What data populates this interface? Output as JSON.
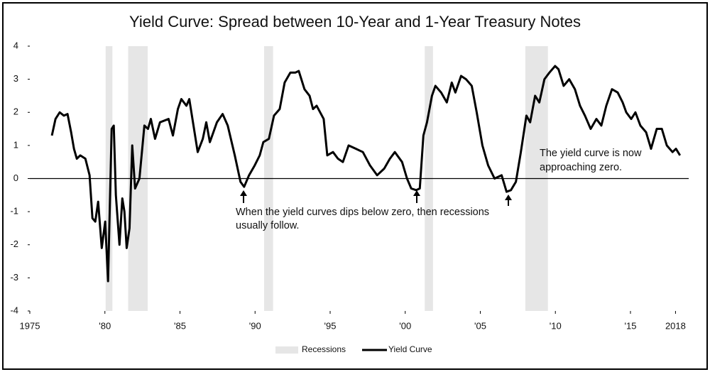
{
  "chart_data": {
    "type": "line",
    "title": "Yield Curve: Spread between 10-Year and 1-Year Treasury Notes",
    "xlim": [
      1975,
      2018.5
    ],
    "xticks": [
      1975,
      {
        "value": 1980,
        "label": "'80"
      },
      {
        "value": 1985,
        "label": "'85"
      },
      {
        "value": 1990,
        "label": "'90"
      },
      {
        "value": 1995,
        "label": "'95"
      },
      {
        "value": 2000,
        "label": "'00"
      },
      {
        "value": 2005,
        "label": "'05"
      },
      {
        "value": 2010,
        "label": "'10"
      },
      {
        "value": 2015,
        "label": "'15"
      },
      2018
    ],
    "ylim": [
      -4,
      4
    ],
    "yticks": [
      4,
      3,
      2,
      1,
      0,
      -1,
      -2,
      -3,
      -4
    ],
    "recessions": {
      "name": "Recessions",
      "color": "#e6e6e6",
      "periods": [
        [
          1980.05,
          1980.5
        ],
        [
          1981.55,
          1982.85
        ],
        [
          1990.6,
          1991.2
        ],
        [
          2001.3,
          2001.85
        ],
        [
          2008.0,
          2009.5
        ]
      ]
    },
    "x": [
      1976.47,
      1976.71,
      1976.99,
      1977.27,
      1977.51,
      1977.75,
      1977.94,
      1978.13,
      1978.36,
      1978.7,
      1978.98,
      1979.17,
      1979.36,
      1979.55,
      1979.79,
      1980.02,
      1980.21,
      1980.45,
      1980.59,
      1980.73,
      1980.97,
      1981.16,
      1981.3,
      1981.45,
      1981.64,
      1981.82,
      1982.01,
      1982.3,
      1982.63,
      1982.87,
      1983.06,
      1983.34,
      1983.67,
      1984.24,
      1984.53,
      1984.86,
      1985.09,
      1985.43,
      1985.62,
      1985.9,
      1986.18,
      1986.52,
      1986.75,
      1986.99,
      1987.46,
      1987.84,
      1988.18,
      1988.65,
      1989.03,
      1989.27,
      1989.6,
      1989.98,
      1990.31,
      1990.55,
      1990.92,
      1991.26,
      1991.64,
      1991.97,
      1992.35,
      1992.68,
      1992.91,
      1993.29,
      1993.63,
      1993.86,
      1994.1,
      1994.57,
      1994.81,
      1995.19,
      1995.52,
      1995.85,
      1996.23,
      1996.71,
      1997.18,
      1997.65,
      1998.13,
      1998.6,
      1998.98,
      1999.31,
      1999.79,
      2000.12,
      2000.4,
      2000.73,
      2000.97,
      2001.21,
      2001.45,
      2001.78,
      2002.01,
      2002.39,
      2002.77,
      2003.1,
      2003.34,
      2003.72,
      2004.05,
      2004.43,
      2004.76,
      2005.14,
      2005.52,
      2005.95,
      2006.42,
      2006.75,
      2007.04,
      2007.37,
      2007.7,
      2008.07,
      2008.32,
      2008.65,
      2008.93,
      2009.27,
      2009.6,
      2009.98,
      2010.21,
      2010.55,
      2010.92,
      2011.3,
      2011.64,
      2011.97,
      2012.35,
      2012.73,
      2013.06,
      2013.39,
      2013.77,
      2014.15,
      2014.48,
      2014.72,
      2015.05,
      2015.33,
      2015.66,
      2016.04,
      2016.37,
      2016.75,
      2017.09,
      2017.42,
      2017.8,
      2018.03,
      2018.3
    ],
    "series": [
      {
        "name": "Yield Curve",
        "color": "#000000",
        "values": [
          1.3,
          1.8,
          2.0,
          1.9,
          1.95,
          1.4,
          0.9,
          0.6,
          0.7,
          0.6,
          0.1,
          -1.2,
          -1.3,
          -0.7,
          -2.1,
          -1.3,
          -3.1,
          1.5,
          1.6,
          -0.5,
          -2.0,
          -0.6,
          -1.0,
          -2.1,
          -1.5,
          1.0,
          -0.3,
          0,
          1.6,
          1.5,
          1.8,
          1.2,
          1.7,
          1.8,
          1.3,
          2.1,
          2.4,
          2.2,
          2.4,
          1.6,
          0.8,
          1.2,
          1.7,
          1.1,
          1.7,
          1.95,
          1.6,
          0.7,
          -0.1,
          -0.25,
          0.1,
          0.4,
          0.7,
          1.1,
          1.2,
          1.9,
          2.1,
          2.9,
          3.2,
          3.2,
          3.25,
          2.7,
          2.5,
          2.1,
          2.2,
          1.8,
          0.7,
          0.8,
          0.6,
          0.5,
          1.0,
          0.9,
          0.8,
          0.4,
          0.1,
          0.3,
          0.6,
          0.8,
          0.5,
          0,
          -0.3,
          -0.35,
          -0.3,
          1.3,
          1.7,
          2.5,
          2.8,
          2.6,
          2.3,
          2.9,
          2.6,
          3.1,
          3.0,
          2.8,
          2.0,
          1.0,
          0.4,
          0,
          0.1,
          -0.4,
          -0.35,
          -0.1,
          0.8,
          1.9,
          1.7,
          2.5,
          2.3,
          3.0,
          3.2,
          3.4,
          3.3,
          2.8,
          3.0,
          2.7,
          2.2,
          1.9,
          1.5,
          1.8,
          1.6,
          2.2,
          2.7,
          2.6,
          2.3,
          2.0,
          1.8,
          2.0,
          1.6,
          1.4,
          0.9,
          1.5,
          1.5,
          1.0,
          0.8,
          0.9,
          0.7
        ]
      }
    ],
    "annotations": [
      [
        "When the yield curves dips below zero, then recessions",
        "usually follow."
      ],
      [
        "The yield curve is now",
        "approaching zero."
      ]
    ]
  }
}
